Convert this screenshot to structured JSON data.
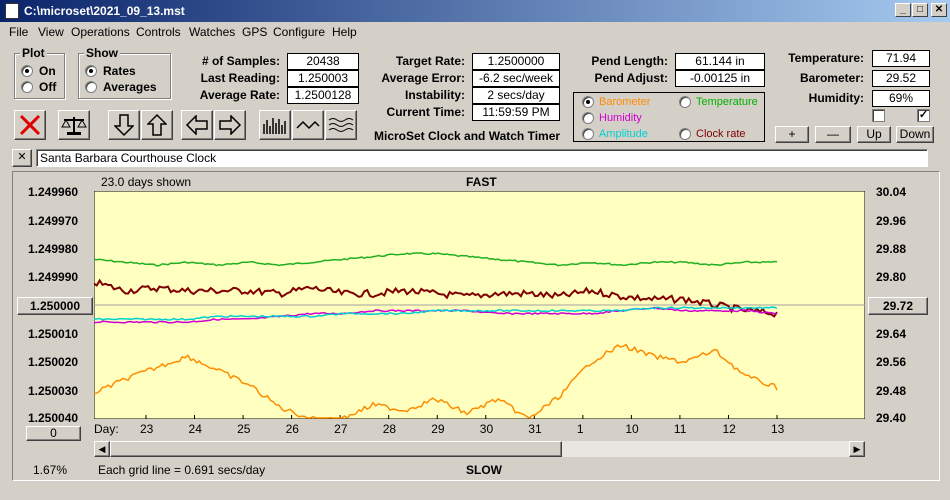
{
  "window": {
    "title": "C:\\microset\\2021_09_13.mst"
  },
  "menu": [
    "File",
    "View",
    "Operations",
    "Controls",
    "Watches",
    "GPS",
    "Configure",
    "Help"
  ],
  "plot_group": {
    "label": "Plot",
    "on": "On",
    "off": "Off",
    "selected": "On"
  },
  "show_group": {
    "label": "Show",
    "rates": "Rates",
    "averages": "Averages",
    "selected": "Rates"
  },
  "stats": {
    "samples_label": "# of Samples:",
    "samples": "20438",
    "last_label": "Last Reading:",
    "last": "1.250003",
    "avg_label": "Average Rate:",
    "avg": "1.2500128",
    "target_label": "Target Rate:",
    "target": "1.2500000",
    "err_label": "Average Error:",
    "err": "-6.2 sec/week",
    "inst_label": "Instability:",
    "inst": "2 secs/day",
    "time_label": "Current Time:",
    "time": "11:59:59 PM",
    "pend_len_label": "Pend Length:",
    "pend_len": "61.144 in",
    "pend_adj_label": "Pend Adjust:",
    "pend_adj": "-0.00125 in",
    "temp_label": "Temperature:",
    "temp": "71.94",
    "baro_label": "Barometer:",
    "baro": "29.52",
    "hum_label": "Humidity:",
    "hum": "69%"
  },
  "app_caption": "MicroSet Clock and Watch Timer",
  "sensor_select": {
    "barometer": "Barometer",
    "temperature": "Temperature",
    "humidity": "Humidity",
    "amplitude": "Amplitude",
    "clock_rate": "Clock rate",
    "selected": "Barometer",
    "colors": {
      "barometer": "#ff8c00",
      "temperature": "#00b000",
      "humidity": "#d000d0",
      "amplitude": "#00d0d0",
      "clock_rate": "#800000"
    }
  },
  "small_buttons": {
    "plus": "+",
    "minus": "—",
    "up": "Up",
    "down": "Down"
  },
  "checkboxes": [
    false,
    true
  ],
  "note": {
    "close": "✕",
    "text": "Santa Barbara Courthouse Clock"
  },
  "chart_data": {
    "type": "line",
    "title": "FAST",
    "bottom_title": "SLOW",
    "days_shown": "23.0 days shown",
    "grid_note": "Each grid line = 0.691 secs/day",
    "percent": "1.67%",
    "left_button": "1.250000",
    "right_button": "29.72",
    "bottom_left_button": "0",
    "day_label": "Day:",
    "left_ticks": [
      "1.249960",
      "1.249970",
      "1.249980",
      "1.249990",
      "1.250000",
      "1.250010",
      "1.250020",
      "1.250030",
      "1.250040"
    ],
    "right_ticks": [
      "30.04",
      "29.96",
      "29.88",
      "29.80",
      "29.72",
      "29.64",
      "29.56",
      "29.48",
      "29.40"
    ],
    "x_ticks": [
      "23",
      "24",
      "25",
      "26",
      "27",
      "28",
      "29",
      "30",
      "31",
      "1",
      "10",
      "11",
      "12",
      "13"
    ],
    "ylim_left": [
      1.24996,
      1.25004
    ],
    "ylim_right": [
      29.4,
      30.04
    ],
    "background": "#ffffc0",
    "series": [
      {
        "name": "Temperature",
        "color": "#20b020",
        "values": [
          1.249984,
          1.249985,
          1.249986,
          1.249985,
          1.249986,
          1.249985,
          1.249986,
          1.249985,
          1.249984,
          1.249983,
          1.249982,
          1.249982,
          1.249983,
          1.249984,
          1.249985,
          1.249986,
          1.249985,
          1.249986,
          1.249985,
          1.249985,
          1.249986,
          1.249985,
          1.249985
        ]
      },
      {
        "name": "Clock rate",
        "color": "#800000",
        "values": [
          1.249992,
          1.249995,
          1.249994,
          1.249995,
          1.249995,
          1.249995,
          1.249996,
          1.249994,
          1.249996,
          1.249996,
          1.249995,
          1.249996,
          1.249997,
          1.249996,
          1.249996,
          1.249997,
          1.249995,
          1.249997,
          1.249998,
          1.249998,
          1.25,
          1.250002,
          1.250003
        ]
      },
      {
        "name": "Humidity",
        "color": "#d000d0",
        "values": [
          1.250006,
          1.250006,
          1.250006,
          1.250006,
          1.250005,
          1.250005,
          1.250004,
          1.250003,
          1.250003,
          1.250002,
          1.250002,
          1.250002,
          1.250002,
          1.250003,
          1.250003,
          1.250003,
          1.250003,
          1.250002,
          1.250001,
          1.250002,
          1.250002,
          1.250002,
          1.250003
        ]
      },
      {
        "name": "Amplitude",
        "color": "#00d0d0",
        "values": [
          1.250005,
          1.250005,
          1.250005,
          1.250005,
          1.250004,
          1.250004,
          1.250004,
          1.250004,
          1.250003,
          1.250003,
          1.250003,
          1.250002,
          1.250002,
          1.250002,
          1.250002,
          1.250002,
          1.250002,
          1.250002,
          1.250001,
          1.250001,
          1.250001,
          1.250001,
          1.250001
        ]
      },
      {
        "name": "Barometer",
        "color": "#ff8c00",
        "values": [
          1.250031,
          1.250026,
          1.250022,
          1.250018,
          1.250023,
          1.250028,
          1.250036,
          1.25004,
          1.25004,
          1.250035,
          1.250037,
          1.250033,
          1.250038,
          1.250033,
          1.25004,
          1.250032,
          1.25002,
          1.250014,
          1.250018,
          1.25002,
          1.250016,
          1.250025,
          1.250029
        ]
      }
    ]
  }
}
